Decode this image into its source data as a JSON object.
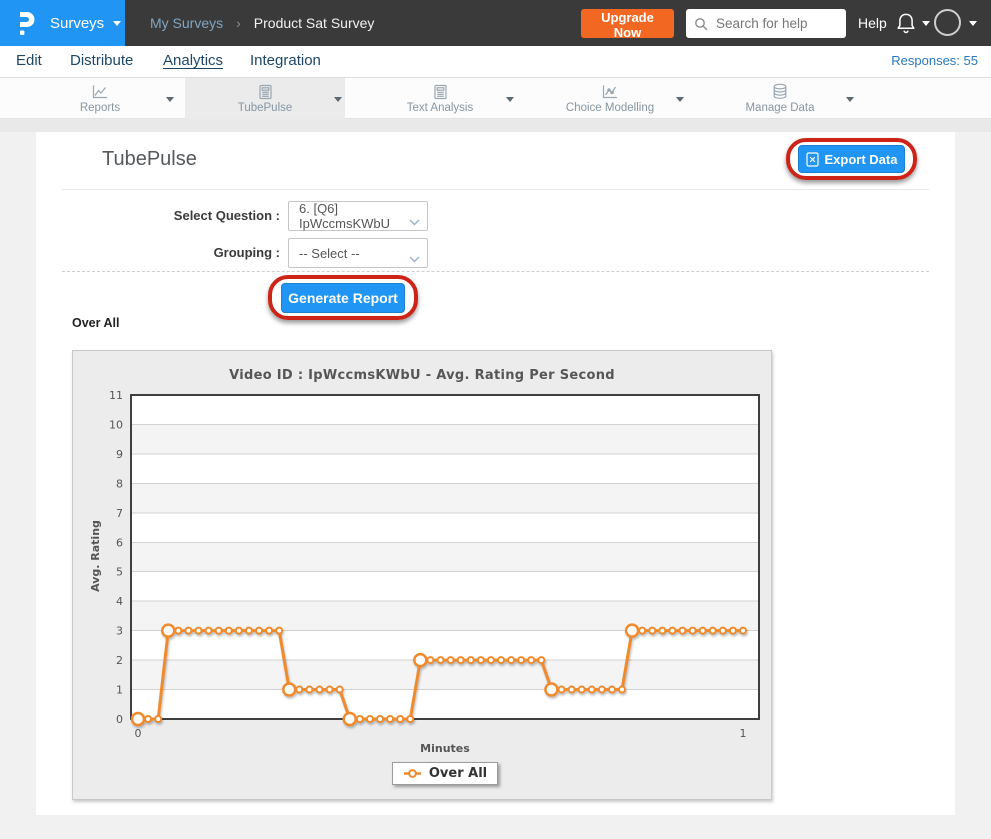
{
  "header": {
    "app_menu": {
      "label": "Surveys"
    },
    "breadcrumb": {
      "parent": "My Surveys",
      "separator": "›",
      "current": "Product Sat Survey"
    },
    "upgrade_label": "Upgrade Now",
    "search_placeholder": "Search for help",
    "help_label": "Help"
  },
  "nav": {
    "items": [
      "Edit",
      "Distribute",
      "Analytics",
      "Integration"
    ],
    "active_item": "Analytics",
    "responses_label": "Responses: 55"
  },
  "tabs": [
    {
      "label": "Reports",
      "icon": "line-chart-icon",
      "active": false
    },
    {
      "label": "TubePulse",
      "icon": "report-doc-icon",
      "active": true
    },
    {
      "label": "Text Analysis",
      "icon": "report-doc-icon",
      "active": false
    },
    {
      "label": "Choice Modelling",
      "icon": "scatter-chart-icon",
      "active": false
    },
    {
      "label": "Manage Data",
      "icon": "database-icon",
      "active": false
    }
  ],
  "main": {
    "page_title": "TubePulse",
    "export_button_label": "Export Data",
    "form": {
      "question_label": "Select Question :",
      "question_value": "6. [Q6] IpWccmsKWbU",
      "grouping_label": "Grouping :",
      "grouping_value": "-- Select --"
    },
    "generate_button_label": "Generate Report",
    "section_label": "Over All"
  },
  "chart_data": {
    "type": "line",
    "title": "Video ID : IpWccmsKWbU - Avg. Rating Per Second",
    "xlabel": "Minutes",
    "ylabel": "Avg. Rating",
    "ylim": [
      0,
      11
    ],
    "yticks": [
      0,
      1,
      2,
      3,
      4,
      5,
      6,
      7,
      8,
      9,
      10,
      11
    ],
    "xticks": [
      {
        "label": "0",
        "second": 0
      },
      {
        "label": "1",
        "second": 60
      }
    ],
    "x_start_second": 0,
    "x_step_seconds": 1,
    "grid": true,
    "legend_position": "bottom",
    "series": [
      {
        "name": "Over All",
        "color": "#f08b2d",
        "values": [
          0,
          0,
          0,
          3,
          3,
          3,
          3,
          3,
          3,
          3,
          3,
          3,
          3,
          3,
          3,
          1,
          1,
          1,
          1,
          1,
          1,
          0,
          0,
          0,
          0,
          0,
          0,
          0,
          2,
          2,
          2,
          2,
          2,
          2,
          2,
          2,
          2,
          2,
          2,
          2,
          2,
          1,
          1,
          1,
          1,
          1,
          1,
          1,
          1,
          3,
          3,
          3,
          3,
          3,
          3,
          3,
          3,
          3,
          3,
          3,
          3
        ]
      }
    ]
  },
  "colors": {
    "brand_blue": "#2095f3",
    "header_dark": "#3a3a3a",
    "upgrade_orange": "#f26822",
    "annotation_red": "#ce2418",
    "chart_line_orange": "#f08b2d",
    "nav_text_blue": "#1e4766",
    "responses_blue": "#2878bd"
  }
}
